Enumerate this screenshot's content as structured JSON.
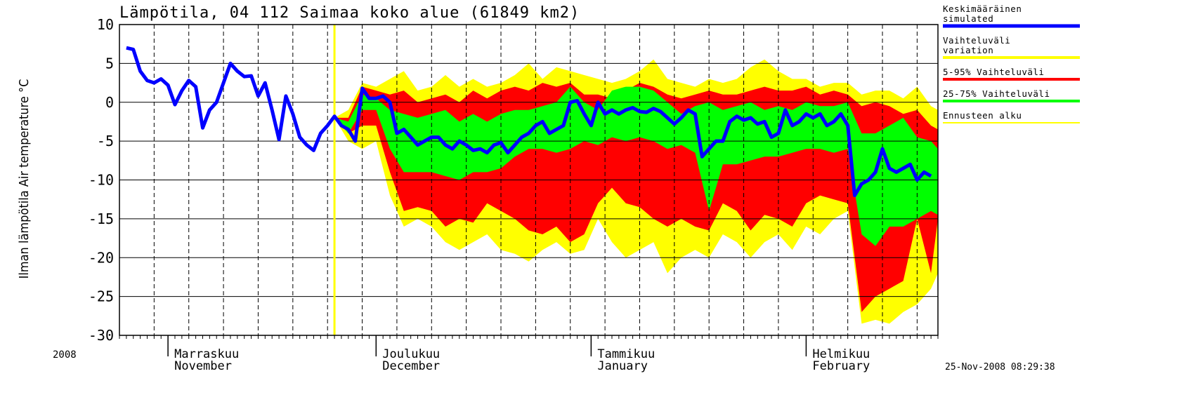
{
  "chart_data": {
    "type": "line",
    "title": "Lämpötila, 04 112 Saimaa koko alue (61849 km2)",
    "y_label": "Ilman lämpötila Air temperature °C",
    "year_label": "2008",
    "timestamp": "25-Nov-2008 08:29:38",
    "xlim": [
      0,
      118
    ],
    "xticks": [
      {
        "value": 7,
        "label": "Marraskuu\nNovember"
      },
      {
        "value": 37,
        "label": "Joulukuu\nDecember"
      },
      {
        "value": 68,
        "label": "Tammikuu\nJanuary"
      },
      {
        "value": 99,
        "label": "Helmikuu\nFebruary"
      }
    ],
    "xgrid": [
      5,
      10,
      15,
      20,
      25,
      30,
      35,
      40,
      45,
      50,
      55,
      60,
      65,
      70,
      75,
      80,
      85,
      90,
      95,
      100,
      105,
      110,
      115
    ],
    "ylim": [
      -30,
      10
    ],
    "yticks": [
      10,
      5,
      0,
      -5,
      -10,
      -15,
      -20,
      -25,
      -30
    ],
    "grid": true,
    "forecast_start": {
      "name": "Ennusteen alku",
      "color": "#ffff00",
      "x": 31
    },
    "series": [
      {
        "name": "Vaihteluväli\nvariation",
        "type": "band",
        "color": "#ffff00",
        "x": [
          31,
          33,
          35,
          37,
          39,
          41,
          43,
          45,
          47,
          49,
          51,
          53,
          55,
          57,
          59,
          61,
          63,
          65,
          67,
          69,
          71,
          73,
          75,
          77,
          79,
          81,
          83,
          85,
          87,
          89,
          91,
          93,
          95,
          97,
          99,
          101,
          103,
          105,
          107,
          109,
          111,
          113,
          115,
          117,
          118
        ],
        "values": [
          -2,
          -1,
          2.5,
          2,
          3,
          4,
          1.5,
          2,
          3.5,
          2,
          3,
          2,
          2.5,
          3.5,
          5,
          3,
          4.5,
          4,
          3.5,
          3,
          2.5,
          3,
          4,
          5.5,
          3,
          2.5,
          2,
          3,
          2.5,
          3,
          4.5,
          5.5,
          4,
          3,
          3,
          2,
          2.5,
          2.5,
          1,
          1.5,
          1.5,
          0.5,
          2,
          -0.5,
          -1
        ],
        "lower": [
          -2,
          -5,
          -6,
          -5,
          -12,
          -16,
          -15,
          -16,
          -18,
          -19,
          -18,
          -17,
          -19,
          -19.5,
          -20.5,
          -19,
          -18,
          -19.5,
          -19,
          -15,
          -18,
          -20,
          -19,
          -18,
          -22,
          -20,
          -19,
          -20,
          -17,
          -18,
          -20,
          -18,
          -17,
          -19,
          -16,
          -17,
          -15,
          -14,
          -28.5,
          -28,
          -28.5,
          -27,
          -26,
          -24,
          -22
        ]
      },
      {
        "name": "5-95% Vaihteluväli",
        "type": "band",
        "color": "#ff0000",
        "x": [
          31,
          33,
          35,
          37,
          39,
          41,
          43,
          45,
          47,
          49,
          51,
          53,
          55,
          57,
          59,
          61,
          63,
          65,
          67,
          69,
          71,
          73,
          75,
          77,
          79,
          81,
          83,
          85,
          87,
          89,
          91,
          93,
          95,
          97,
          99,
          101,
          103,
          105,
          107,
          109,
          111,
          113,
          115,
          117,
          118
        ],
        "values": [
          -2,
          -2,
          2,
          1.5,
          1,
          1.5,
          0,
          0.5,
          1,
          0,
          1.5,
          0.5,
          1.5,
          2,
          1.5,
          2.5,
          2,
          2.5,
          1,
          1,
          0.5,
          1.5,
          2.5,
          2,
          1,
          0.5,
          1,
          1.5,
          1,
          1,
          1.5,
          2,
          1.5,
          1.5,
          2,
          1,
          1.5,
          1,
          -0.5,
          0,
          -0.5,
          -1.5,
          -1,
          -3,
          -3.5
        ],
        "lower": [
          -2,
          -4,
          -3,
          -3,
          -9,
          -14,
          -13.5,
          -14,
          -16,
          -15,
          -15.5,
          -13,
          -14,
          -15,
          -16.5,
          -17,
          -16,
          -18,
          -17,
          -13,
          -11,
          -13,
          -13.5,
          -15,
          -16,
          -15,
          -16,
          -16.5,
          -13,
          -14,
          -16.5,
          -14.5,
          -15,
          -16,
          -13,
          -12,
          -12.5,
          -13,
          -27,
          -25,
          -24,
          -23,
          -15,
          -22,
          -15
        ]
      },
      {
        "name": "25-75% Vaihteluväli",
        "type": "band",
        "color": "#00ff00",
        "x": [
          31,
          33,
          35,
          37,
          39,
          41,
          43,
          45,
          47,
          49,
          51,
          53,
          55,
          57,
          59,
          61,
          63,
          65,
          67,
          69,
          71,
          73,
          75,
          77,
          79,
          81,
          83,
          85,
          87,
          89,
          91,
          93,
          95,
          97,
          99,
          101,
          103,
          105,
          107,
          109,
          111,
          113,
          115,
          117,
          118
        ],
        "values": [
          -2,
          -2.5,
          1,
          0.5,
          -1,
          -1.5,
          -2,
          -1.5,
          -1,
          -2.5,
          -1.5,
          -2.5,
          -1.5,
          -1,
          -1,
          -0.5,
          0,
          2,
          0,
          -1,
          1.5,
          2,
          2,
          1.5,
          0,
          -1.5,
          -0.5,
          0,
          -1,
          -0.5,
          0,
          -1,
          -0.5,
          -1,
          0,
          -0.5,
          -0.5,
          0,
          -4,
          -4,
          -3,
          -2,
          -4.5,
          -5,
          -6
        ],
        "lower": [
          -2,
          -4,
          -1,
          -1,
          -6,
          -9,
          -9,
          -9,
          -9.5,
          -10,
          -9,
          -9,
          -8.5,
          -7,
          -6,
          -6,
          -6.5,
          -6,
          -5,
          -5.5,
          -4.5,
          -5,
          -4.5,
          -5,
          -6,
          -5.5,
          -6.5,
          -14,
          -8,
          -8,
          -7.5,
          -7,
          -7,
          -6.5,
          -6,
          -6,
          -6.5,
          -6,
          -17,
          -18.5,
          -16,
          -16,
          -15,
          -14,
          -14.5
        ]
      },
      {
        "name": "Keskimääräinen\nsimulated",
        "type": "line",
        "color": "#0000ff",
        "x": [
          1,
          2,
          3,
          4,
          5,
          6,
          7,
          8,
          9,
          10,
          11,
          12,
          13,
          14,
          15,
          16,
          17,
          18,
          19,
          20,
          21,
          22,
          23,
          24,
          25,
          26,
          27,
          28,
          29,
          30,
          31,
          32,
          33,
          34,
          35,
          36,
          37,
          38,
          39,
          40,
          41,
          42,
          43,
          44,
          45,
          46,
          47,
          48,
          49,
          50,
          51,
          52,
          53,
          54,
          55,
          56,
          57,
          58,
          59,
          60,
          61,
          62,
          63,
          64,
          65,
          66,
          67,
          68,
          69,
          70,
          71,
          72,
          73,
          74,
          75,
          76,
          77,
          78,
          79,
          80,
          81,
          82,
          83,
          84,
          85,
          86,
          87,
          88,
          89,
          90,
          91,
          92,
          93,
          94,
          95,
          96,
          97,
          98,
          99,
          100,
          101,
          102,
          103,
          104,
          105,
          106,
          107,
          108,
          109,
          110,
          111,
          112,
          113,
          114,
          115,
          116,
          117
        ],
        "values": [
          7,
          6.8,
          4,
          2.8,
          2.5,
          3,
          2.2,
          -0.3,
          1.5,
          2.8,
          2,
          -3.3,
          -1,
          0,
          2.5,
          5,
          4,
          3.3,
          3.4,
          0.8,
          2.5,
          -1,
          -4.8,
          0.8,
          -1.5,
          -4.5,
          -5.5,
          -6.2,
          -4,
          -3,
          -1.8,
          -3,
          -3.5,
          -5,
          1.8,
          0.5,
          0.5,
          0.8,
          0,
          -4,
          -3.5,
          -4.5,
          -5.5,
          -5,
          -4.5,
          -4.5,
          -5.5,
          -6,
          -5,
          -5.5,
          -6.2,
          -6,
          -6.5,
          -5.5,
          -5.2,
          -6.5,
          -5.5,
          -4.5,
          -4,
          -3,
          -2.5,
          -4,
          -3.5,
          -3,
          0,
          0.2,
          -1.5,
          -3,
          0,
          -1.5,
          -1,
          -1.5,
          -1,
          -0.7,
          -1.2,
          -1.3,
          -0.8,
          -1.2,
          -2,
          -2.8,
          -2,
          -1,
          -1.5,
          -7,
          -6,
          -5,
          -5,
          -2.5,
          -1.8,
          -2.3,
          -2,
          -2.8,
          -2.5,
          -4.5,
          -4,
          -1,
          -3,
          -2.5,
          -1.5,
          -2,
          -1.5,
          -3,
          -2.5,
          -1.5,
          -3,
          -12,
          -10.5,
          -10,
          -9,
          -6,
          -8.5,
          -9,
          -8.5,
          -8,
          -10,
          -9,
          -9.5
        ]
      }
    ],
    "legend_order": [
      3,
      0,
      1,
      2
    ]
  }
}
